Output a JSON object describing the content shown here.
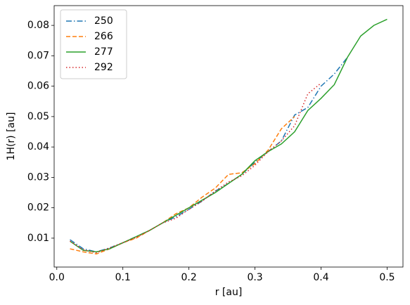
{
  "chart_data": {
    "type": "line",
    "xlabel": "r [au]",
    "ylabel": "1H(r) [au]",
    "x": [
      0.02,
      0.04,
      0.06,
      0.08,
      0.1,
      0.12,
      0.14,
      0.16,
      0.18,
      0.2,
      0.22,
      0.24,
      0.26,
      0.28,
      0.3,
      0.32,
      0.34,
      0.36,
      0.38,
      0.4,
      0.42,
      0.44,
      0.46,
      0.48,
      0.5
    ],
    "series": [
      {
        "name": "250",
        "color": "#1f77b4",
        "linestyle": "dashdot",
        "values": [
          0.0095,
          0.0065,
          0.0055,
          0.0068,
          0.0085,
          0.0105,
          0.0125,
          0.015,
          0.017,
          0.0195,
          0.0222,
          0.0255,
          0.028,
          0.031,
          0.035,
          0.0385,
          0.042,
          0.0505,
          0.053,
          0.06,
          0.064,
          0.0695,
          null,
          null,
          null
        ]
      },
      {
        "name": "266",
        "color": "#ff7f0e",
        "linestyle": "dashed",
        "values": [
          0.0065,
          0.0055,
          0.0048,
          0.0065,
          0.0085,
          0.01,
          0.0125,
          0.015,
          0.018,
          0.02,
          0.0235,
          0.0265,
          0.031,
          0.0315,
          0.0345,
          0.039,
          0.046,
          0.05,
          null,
          null,
          null,
          null,
          null,
          null,
          null
        ]
      },
      {
        "name": "277",
        "color": "#2ca02c",
        "linestyle": "solid",
        "values": [
          0.009,
          0.006,
          0.0055,
          0.0065,
          0.0085,
          0.0105,
          0.0125,
          0.015,
          0.0175,
          0.02,
          0.0225,
          0.025,
          0.028,
          0.031,
          0.0355,
          0.0385,
          0.041,
          0.045,
          0.052,
          0.056,
          0.0605,
          0.0695,
          0.0765,
          0.08,
          0.082
        ]
      },
      {
        "name": "292",
        "color": "#d62728",
        "linestyle": "dotted",
        "values": [
          0.009,
          0.0062,
          0.0052,
          0.0068,
          0.0085,
          0.0102,
          0.0125,
          0.015,
          0.0165,
          0.0195,
          0.0222,
          0.0255,
          0.0285,
          0.0305,
          0.034,
          0.0385,
          0.042,
          0.047,
          0.0575,
          0.061,
          null,
          null,
          null,
          null,
          null
        ]
      }
    ],
    "xlim": [
      -0.004,
      0.524
    ],
    "xticks": [
      {
        "value": 0,
        "label": "0.0"
      },
      0.1,
      0.2,
      0.3,
      0.4,
      0.5
    ],
    "ylim": [
      0.0005,
      0.0865
    ],
    "yticks": [
      0.01,
      0.02,
      0.03,
      0.04,
      0.05,
      0.06,
      0.07,
      0.08
    ],
    "legend": "upper left"
  }
}
